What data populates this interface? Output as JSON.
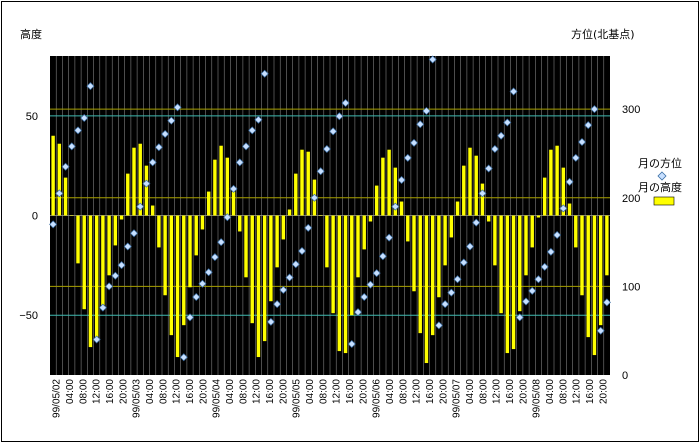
{
  "chart_data": {
    "type": "bar",
    "y_left_label": "高度",
    "y_right_label": "方位(北基点)",
    "y_left_ticks": [
      "50",
      "0",
      "−50"
    ],
    "y_right_ticks": [
      "300",
      "200",
      "100",
      "0"
    ],
    "ylim_left": [
      -80,
      80
    ],
    "ylim_right": [
      0,
      360
    ],
    "grid": false,
    "legend_position": "right",
    "colors": {
      "plot_bg": "#000000",
      "bar": "#ffff00",
      "marker": "#c8e0ff",
      "vline": "#808080",
      "hline_teal": "#3fb9b0",
      "hline_olive": "#a8a000"
    },
    "x_ticks": [
      "99/05/02",
      "04:00",
      "08:00",
      "12:00",
      "16:00",
      "20:00",
      "99/05/03",
      "04:00",
      "08:00",
      "12:00",
      "16:00",
      "20:00",
      "99/05/04",
      "04:00",
      "08:00",
      "12:00",
      "16:00",
      "20:00",
      "99/05/05",
      "04:00",
      "08:00",
      "12:00",
      "16:00",
      "20:00",
      "99/05/06",
      "04:00",
      "08:00",
      "12:00",
      "16:00",
      "20:00",
      "99/05/07",
      "04:00",
      "08:00",
      "12:00",
      "16:00",
      "20:00",
      "99/05/08",
      "04:00",
      "08:00",
      "12:00",
      "16:00",
      "20:00"
    ],
    "series": [
      {
        "name": "月の高度",
        "marker": "bar",
        "values": [
          40,
          36,
          19,
          0,
          -24,
          -47,
          -66,
          -63,
          -45,
          -30,
          -15,
          -2,
          21,
          34,
          36,
          25,
          5,
          -16,
          -40,
          -60,
          -71,
          -55,
          -36,
          -20,
          -7,
          12,
          28,
          35,
          29,
          12,
          -8,
          -31,
          -54,
          -71,
          -63,
          -43,
          -26,
          -12,
          3,
          21,
          33,
          32,
          18,
          0,
          -26,
          -49,
          -68,
          -69,
          -50,
          -31,
          -17,
          -3,
          15,
          29,
          33,
          24,
          7,
          -13,
          -38,
          -59,
          -74,
          -60,
          -41,
          -25,
          -11,
          7,
          25,
          34,
          30,
          16,
          -3,
          -25,
          -49,
          -69,
          -67,
          -48,
          -30,
          -16,
          -1,
          19,
          33,
          35,
          24,
          6,
          -16,
          -40,
          -61,
          -70,
          -55,
          -30
        ]
      },
      {
        "name": "月の方位",
        "marker": "diamond",
        "values": [
          170,
          205,
          235,
          258,
          276,
          290,
          326,
          40,
          76,
          100,
          112,
          124,
          145,
          160,
          190,
          216,
          240,
          257,
          272,
          287,
          302,
          20,
          65,
          88,
          103,
          116,
          133,
          150,
          178,
          210,
          240,
          258,
          276,
          288,
          340,
          60,
          80,
          96,
          110,
          125,
          140,
          166,
          200,
          230,
          255,
          275,
          292,
          307,
          35,
          71,
          88,
          102,
          115,
          134,
          155,
          190,
          220,
          245,
          262,
          283,
          298,
          356,
          56,
          80,
          93,
          108,
          127,
          145,
          172,
          205,
          233,
          255,
          270,
          285,
          320,
          65,
          83,
          95,
          108,
          122,
          139,
          158,
          188,
          218,
          245,
          263,
          282,
          300,
          50,
          82
        ]
      }
    ]
  }
}
